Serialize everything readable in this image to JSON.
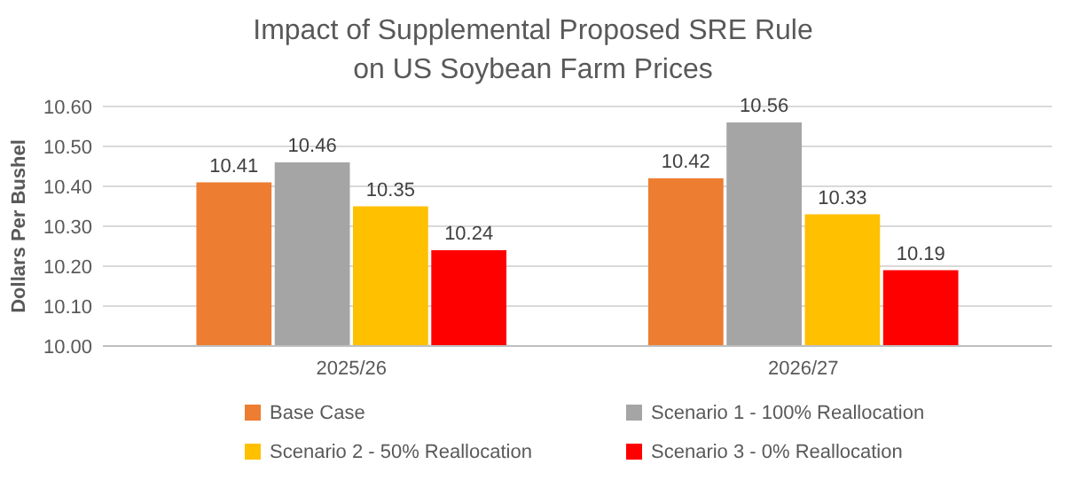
{
  "chart_data": {
    "type": "bar",
    "title": "Impact of Supplemental Proposed SRE Rule\non US Soybean Farm Prices",
    "ylabel": "Dollars Per Bushel",
    "categories": [
      "2025/26",
      "2026/27"
    ],
    "series": [
      {
        "name": "Base Case",
        "color": "#ed7d31",
        "values": [
          10.41,
          10.42
        ]
      },
      {
        "name": "Scenario 1 - 100% Reallocation",
        "color": "#a5a5a5",
        "values": [
          10.46,
          10.56
        ]
      },
      {
        "name": "Scenario 2 - 50% Reallocation",
        "color": "#ffc000",
        "values": [
          10.35,
          10.33
        ]
      },
      {
        "name": "Scenario 3 - 0% Reallocation",
        "color": "#ff0000",
        "values": [
          10.24,
          10.19
        ]
      }
    ],
    "ylim": [
      10,
      10.6
    ],
    "yticks": [
      {
        "value": 10,
        "label": "10.00"
      },
      {
        "value": 10.1,
        "label": "10.10"
      },
      {
        "value": 10.2,
        "label": "10.20"
      },
      {
        "value": 10.3,
        "label": "10.30"
      },
      {
        "value": 10.4,
        "label": "10.40"
      },
      {
        "value": 10.5,
        "label": "10.50"
      },
      {
        "value": 10.6,
        "label": "10.60"
      }
    ],
    "grid": true,
    "data_labels": true,
    "legend": "bottom"
  }
}
